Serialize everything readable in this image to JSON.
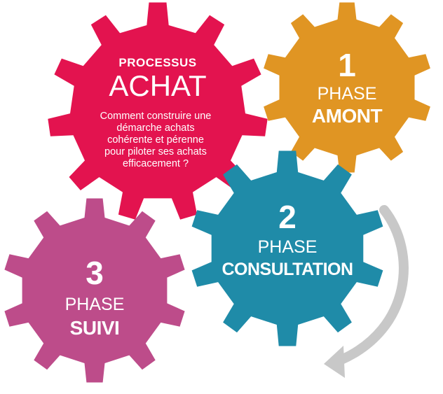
{
  "colors": {
    "achat": "#e3134f",
    "amont": "#e09523",
    "consultation": "#1f8ba8",
    "suivi": "#bd4c8a",
    "arrow": "#c8c8c8"
  },
  "achat": {
    "label": "PROCESSUS",
    "title": "ACHAT",
    "description": [
      "Comment  construire une",
      "démarche  achats",
      "cohérente  et pérenne",
      "pour piloter ses achats",
      "efficacement  ?"
    ]
  },
  "amont": {
    "number": "1",
    "phase": "PHASE",
    "name": "AMONT"
  },
  "consultation": {
    "number": "2",
    "phase": "PHASE",
    "name": "CONSULTATION"
  },
  "suivi": {
    "number": "3",
    "phase": "PHASE",
    "name": "SUIVI"
  }
}
